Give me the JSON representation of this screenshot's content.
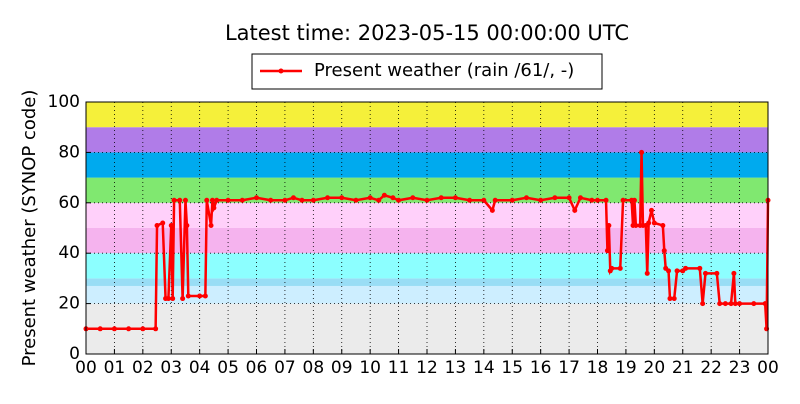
{
  "chart_data": {
    "type": "line",
    "title": "Latest time: 2023-05-15 00:00:00 UTC",
    "y_label": "Present weather (SYNOP code)",
    "xlim": [
      0,
      24
    ],
    "ylim": [
      0,
      100
    ],
    "xticks": [
      {
        "value": 0,
        "label": "00"
      },
      {
        "value": 1,
        "label": "01"
      },
      {
        "value": 2,
        "label": "02"
      },
      {
        "value": 3,
        "label": "03"
      },
      {
        "value": 4,
        "label": "04"
      },
      {
        "value": 5,
        "label": "05"
      },
      {
        "value": 6,
        "label": "06"
      },
      {
        "value": 7,
        "label": "07"
      },
      {
        "value": 8,
        "label": "08"
      },
      {
        "value": 9,
        "label": "09"
      },
      {
        "value": 10,
        "label": "10"
      },
      {
        "value": 11,
        "label": "11"
      },
      {
        "value": 12,
        "label": "12"
      },
      {
        "value": 13,
        "label": "13"
      },
      {
        "value": 14,
        "label": "14"
      },
      {
        "value": 15,
        "label": "15"
      },
      {
        "value": 16,
        "label": "16"
      },
      {
        "value": 17,
        "label": "17"
      },
      {
        "value": 18,
        "label": "18"
      },
      {
        "value": 19,
        "label": "19"
      },
      {
        "value": 20,
        "label": "20"
      },
      {
        "value": 21,
        "label": "21"
      },
      {
        "value": 22,
        "label": "22"
      },
      {
        "value": 23,
        "label": "23"
      },
      {
        "value": 24,
        "label": "00"
      }
    ],
    "yticks": [
      0,
      20,
      40,
      60,
      80,
      100
    ],
    "grid": true,
    "legend": "top",
    "bands": [
      {
        "from": 0,
        "to": 20,
        "color": "#ebebeb"
      },
      {
        "from": 20,
        "to": 27,
        "color": "#cdeeff"
      },
      {
        "from": 27,
        "to": 30,
        "color": "#99ddf5"
      },
      {
        "from": 30,
        "to": 40,
        "color": "#8cffff"
      },
      {
        "from": 40,
        "to": 50,
        "color": "#f5b3ee"
      },
      {
        "from": 50,
        "to": 60,
        "color": "#ffd0fa"
      },
      {
        "from": 60,
        "to": 70,
        "color": "#80e870"
      },
      {
        "from": 70,
        "to": 80,
        "color": "#00aaee"
      },
      {
        "from": 80,
        "to": 90,
        "color": "#b07ce8"
      },
      {
        "from": 90,
        "to": 100,
        "color": "#f5f03a"
      }
    ],
    "series": [
      {
        "name": "Present weather (rain /61/, -)",
        "color": "#ff0000",
        "x": [
          0,
          0.5,
          1,
          1.5,
          2,
          2.45,
          2.5,
          2.7,
          2.8,
          2.9,
          3.0,
          3.05,
          3.1,
          3.3,
          3.4,
          3.5,
          3.55,
          3.6,
          4.0,
          4.2,
          4.25,
          4.4,
          4.45,
          4.5,
          4.6,
          5,
          5.5,
          6,
          6.5,
          7,
          7.3,
          7.6,
          8,
          8.5,
          9,
          9.5,
          10,
          10.3,
          10.5,
          10.8,
          11,
          11.5,
          12,
          12.5,
          13,
          13.5,
          14,
          14.3,
          14.4,
          15,
          15.5,
          16,
          16.5,
          17,
          17.2,
          17.4,
          17.8,
          18,
          18.3,
          18.35,
          18.4,
          18.45,
          18.5,
          18.8,
          18.9,
          19.2,
          19.25,
          19.3,
          19.35,
          19.5,
          19.55,
          19.6,
          19.7,
          19.75,
          19.8,
          19.9,
          20,
          20.3,
          20.35,
          20.4,
          20.5,
          20.55,
          20.7,
          20.8,
          21,
          21.1,
          21.6,
          21.7,
          21.8,
          22.2,
          22.3,
          22.5,
          22.7,
          22.8,
          22.85,
          23,
          23.5,
          23.9,
          23.95,
          24
        ],
        "values": [
          10,
          10,
          10,
          10,
          10,
          10,
          51,
          52,
          22,
          22,
          51,
          22,
          61,
          61,
          22,
          61,
          51,
          23,
          23,
          23,
          61,
          51,
          61,
          58,
          61,
          61,
          61,
          62,
          61,
          61,
          62,
          61,
          61,
          62,
          62,
          61,
          62,
          61,
          63,
          62,
          61,
          62,
          61,
          62,
          62,
          61,
          61,
          57,
          61,
          61,
          62,
          61,
          62,
          62,
          57,
          62,
          61,
          61,
          61,
          41,
          51,
          33,
          34,
          34,
          61,
          61,
          51,
          61,
          51,
          51,
          80,
          51,
          51,
          32,
          52,
          57,
          52,
          51,
          41,
          34,
          33,
          22,
          22,
          33,
          33,
          34,
          34,
          20,
          32,
          32,
          20,
          20,
          20,
          32,
          20,
          20,
          20,
          20,
          10,
          61
        ]
      }
    ]
  }
}
